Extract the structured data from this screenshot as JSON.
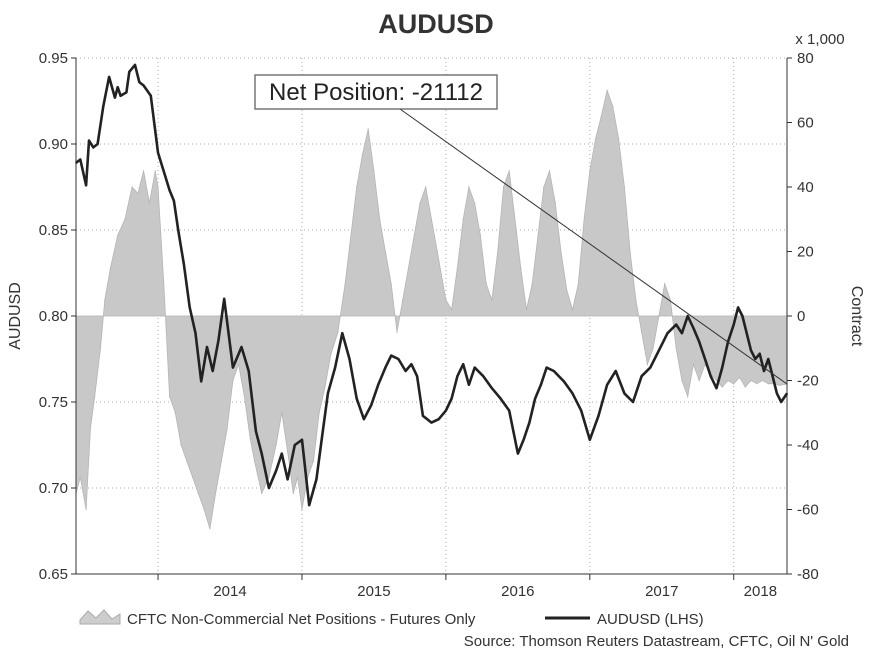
{
  "chart_data": {
    "type": "line",
    "title": "AUDUSD",
    "xlabel": "",
    "ylabel": "AUDUSD",
    "y2label": "Contract",
    "y2_multiplier_label": "x 1,000",
    "x_tick_labels": [
      "2014",
      "2015",
      "2016",
      "2017",
      "2018"
    ],
    "x_range": [
      2013.43,
      2018.37
    ],
    "year_boundaries": [
      2014.0,
      2015.0,
      2016.0,
      2017.0,
      2018.0
    ],
    "ylim": [
      0.65,
      0.95
    ],
    "yticks": [
      "0.65",
      "0.70",
      "0.75",
      "0.80",
      "0.85",
      "0.90",
      "0.95"
    ],
    "y2lim": [
      -80,
      80
    ],
    "y2ticks": [
      "-80",
      "-60",
      "-40",
      "-20",
      "0",
      "20",
      "40",
      "60",
      "80"
    ],
    "annotation": {
      "text": "Net Position: -21112",
      "points_to": [
        2018.37,
        -21.1
      ]
    },
    "legend": [
      "CFTC Non-Commercial Net Positions - Futures Only",
      "AUDUSD (LHS)"
    ],
    "source": "Source: Thomson Reuters Datastream, CFTC, Oil N' Gold",
    "series": [
      {
        "name": "AUDUSD (LHS)",
        "axis": "left",
        "color": "#222222",
        "x": [
          2013.43,
          2013.46,
          2013.5,
          2013.52,
          2013.55,
          2013.58,
          2013.62,
          2013.66,
          2013.7,
          2013.72,
          2013.74,
          2013.78,
          2013.8,
          2013.84,
          2013.87,
          2013.9,
          2013.95,
          2014.0,
          2014.04,
          2014.08,
          2014.11,
          2014.14,
          2014.18,
          2014.22,
          2014.26,
          2014.3,
          2014.34,
          2014.38,
          2014.42,
          2014.46,
          2014.52,
          2014.58,
          2014.63,
          2014.68,
          2014.72,
          2014.77,
          2014.82,
          2014.86,
          2014.9,
          2014.95,
          2015.0,
          2015.05,
          2015.1,
          2015.14,
          2015.18,
          2015.23,
          2015.28,
          2015.33,
          2015.38,
          2015.43,
          2015.48,
          2015.53,
          2015.58,
          2015.62,
          2015.67,
          2015.72,
          2015.76,
          2015.8,
          2015.84,
          2015.9,
          2015.95,
          2016.0,
          2016.04,
          2016.08,
          2016.12,
          2016.16,
          2016.2,
          2016.26,
          2016.32,
          2016.38,
          2016.44,
          2016.5,
          2016.54,
          2016.58,
          2016.62,
          2016.66,
          2016.7,
          2016.75,
          2016.82,
          2016.88,
          2016.94,
          2017.0,
          2017.06,
          2017.12,
          2017.18,
          2017.24,
          2017.3,
          2017.36,
          2017.42,
          2017.48,
          2017.54,
          2017.6,
          2017.64,
          2017.68,
          2017.72,
          2017.76,
          2017.8,
          2017.84,
          2017.88,
          2017.92,
          2017.96,
          2018.0,
          2018.03,
          2018.06,
          2018.09,
          2018.12,
          2018.15,
          2018.18,
          2018.21,
          2018.24,
          2018.27,
          2018.3,
          2018.33,
          2018.37
        ],
        "values": [
          0.889,
          0.891,
          0.876,
          0.902,
          0.898,
          0.9,
          0.922,
          0.939,
          0.927,
          0.933,
          0.928,
          0.93,
          0.942,
          0.946,
          0.936,
          0.934,
          0.928,
          0.895,
          0.884,
          0.873,
          0.867,
          0.85,
          0.83,
          0.805,
          0.79,
          0.762,
          0.782,
          0.768,
          0.786,
          0.81,
          0.77,
          0.782,
          0.768,
          0.733,
          0.72,
          0.7,
          0.71,
          0.72,
          0.705,
          0.725,
          0.728,
          0.69,
          0.705,
          0.73,
          0.755,
          0.77,
          0.79,
          0.775,
          0.752,
          0.74,
          0.748,
          0.76,
          0.77,
          0.777,
          0.775,
          0.768,
          0.772,
          0.765,
          0.742,
          0.738,
          0.74,
          0.745,
          0.752,
          0.765,
          0.772,
          0.76,
          0.77,
          0.765,
          0.758,
          0.752,
          0.745,
          0.72,
          0.728,
          0.738,
          0.752,
          0.76,
          0.77,
          0.768,
          0.762,
          0.755,
          0.745,
          0.728,
          0.742,
          0.76,
          0.768,
          0.755,
          0.75,
          0.765,
          0.77,
          0.78,
          0.79,
          0.795,
          0.79,
          0.8,
          0.793,
          0.785,
          0.775,
          0.765,
          0.758,
          0.77,
          0.785,
          0.795,
          0.805,
          0.8,
          0.79,
          0.78,
          0.775,
          0.778,
          0.768,
          0.775,
          0.765,
          0.755,
          0.75,
          0.755
        ]
      },
      {
        "name": "CFTC Non-Commercial Net Positions - Futures Only",
        "axis": "right",
        "units": "contracts x 1,000",
        "color": "#c8c8c8",
        "x": [
          2013.43,
          2013.46,
          2013.5,
          2013.53,
          2013.56,
          2013.6,
          2013.63,
          2013.67,
          2013.72,
          2013.77,
          2013.82,
          2013.86,
          2013.9,
          2013.94,
          2013.98,
          2014.0,
          2014.04,
          2014.08,
          2014.12,
          2014.16,
          2014.2,
          2014.24,
          2014.28,
          2014.32,
          2014.36,
          2014.4,
          2014.44,
          2014.48,
          2014.52,
          2014.56,
          2014.6,
          2014.64,
          2014.67,
          2014.72,
          2014.77,
          2014.82,
          2014.86,
          2014.9,
          2014.94,
          2014.97,
          2015.0,
          2015.04,
          2015.08,
          2015.12,
          2015.16,
          2015.2,
          2015.25,
          2015.3,
          2015.34,
          2015.38,
          2015.42,
          2015.46,
          2015.5,
          2015.54,
          2015.58,
          2015.62,
          2015.66,
          2015.7,
          2015.74,
          2015.78,
          2015.82,
          2015.86,
          2015.9,
          2015.94,
          2015.98,
          2016.0,
          2016.04,
          2016.08,
          2016.12,
          2016.16,
          2016.2,
          2016.24,
          2016.28,
          2016.32,
          2016.36,
          2016.4,
          2016.44,
          2016.48,
          2016.52,
          2016.56,
          2016.6,
          2016.64,
          2016.68,
          2016.72,
          2016.76,
          2016.8,
          2016.84,
          2016.88,
          2016.92,
          2016.96,
          2017.0,
          2017.04,
          2017.08,
          2017.12,
          2017.16,
          2017.2,
          2017.24,
          2017.28,
          2017.32,
          2017.36,
          2017.4,
          2017.44,
          2017.48,
          2017.52,
          2017.56,
          2017.6,
          2017.64,
          2017.68,
          2017.72,
          2017.76,
          2017.8,
          2017.84,
          2017.88,
          2017.92,
          2017.96,
          2018.0,
          2018.04,
          2018.08,
          2018.12,
          2018.16,
          2018.2,
          2018.24,
          2018.28,
          2018.32,
          2018.37
        ],
        "values": [
          -55,
          -50,
          -60,
          -35,
          -25,
          -10,
          5,
          15,
          25,
          30,
          40,
          38,
          45,
          35,
          45,
          40,
          10,
          -25,
          -30,
          -40,
          -45,
          -50,
          -55,
          -60,
          -66,
          -55,
          -45,
          -35,
          -20,
          -15,
          -25,
          -38,
          -45,
          -55,
          -50,
          -40,
          -30,
          -42,
          -55,
          -50,
          -60,
          -50,
          -45,
          -30,
          -22,
          -12,
          -5,
          10,
          25,
          40,
          50,
          58,
          45,
          30,
          20,
          10,
          -5,
          5,
          15,
          25,
          35,
          40,
          30,
          20,
          10,
          5,
          2,
          15,
          30,
          40,
          35,
          25,
          10,
          5,
          20,
          40,
          45,
          30,
          15,
          2,
          10,
          25,
          40,
          45,
          35,
          20,
          8,
          2,
          10,
          30,
          45,
          55,
          62,
          70,
          65,
          55,
          40,
          20,
          5,
          -5,
          -15,
          -10,
          0,
          10,
          5,
          -10,
          -20,
          -25,
          -15,
          -20,
          -15,
          -18,
          -20,
          -22,
          -20,
          -21.1,
          -19,
          -22,
          -20,
          -21,
          -20,
          -21,
          -21,
          -21.5,
          -21.1
        ]
      }
    ]
  }
}
